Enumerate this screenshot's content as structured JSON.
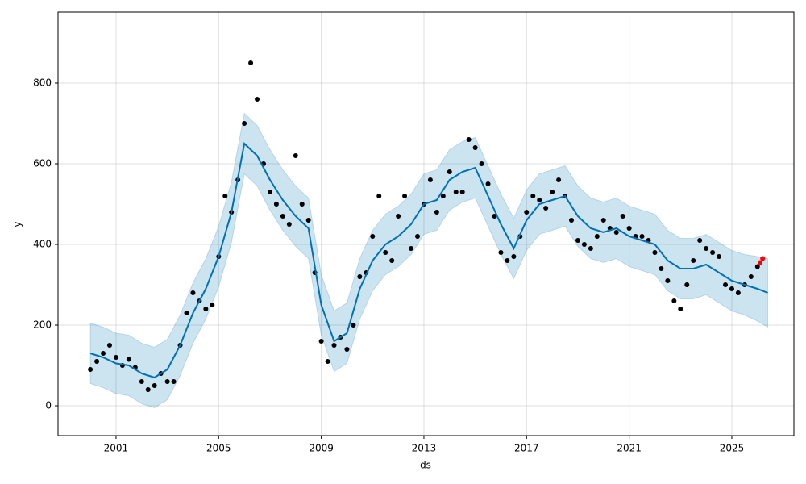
{
  "chart_data": {
    "type": "forecast",
    "x_label": "ds",
    "y_label": "y",
    "xlim": [
      1998.74,
      2027.42
    ],
    "ylim": [
      -74,
      976
    ],
    "xticks": [
      2001,
      2005,
      2009,
      2013,
      2017,
      2021,
      2025
    ],
    "yticks": [
      0,
      200,
      400,
      600,
      800
    ],
    "grid": true,
    "observed": {
      "color": "#000000",
      "x": [
        2000.0,
        2000.25,
        2000.5,
        2000.75,
        2001.0,
        2001.25,
        2001.5,
        2001.75,
        2002.0,
        2002.25,
        2002.5,
        2002.75,
        2003.0,
        2003.25,
        2003.5,
        2003.75,
        2004.0,
        2004.25,
        2004.5,
        2004.75,
        2005.0,
        2005.25,
        2005.5,
        2005.75,
        2006.0,
        2006.25,
        2006.5,
        2006.75,
        2007.0,
        2007.25,
        2007.5,
        2007.75,
        2008.0,
        2008.25,
        2008.5,
        2008.75,
        2009.0,
        2009.25,
        2009.5,
        2009.75,
        2010.0,
        2010.25,
        2010.5,
        2010.75,
        2011.0,
        2011.25,
        2011.5,
        2011.75,
        2012.0,
        2012.25,
        2012.5,
        2012.75,
        2013.0,
        2013.25,
        2013.5,
        2013.75,
        2014.0,
        2014.25,
        2014.5,
        2014.75,
        2015.0,
        2015.25,
        2015.5,
        2015.75,
        2016.0,
        2016.25,
        2016.5,
        2016.75,
        2017.0,
        2017.25,
        2017.5,
        2017.75,
        2018.0,
        2018.25,
        2018.5,
        2018.75,
        2019.0,
        2019.25,
        2019.5,
        2019.75,
        2020.0,
        2020.25,
        2020.5,
        2020.75,
        2021.0,
        2021.25,
        2021.5,
        2021.75,
        2022.0,
        2022.25,
        2022.5,
        2022.75,
        2023.0,
        2023.25,
        2023.5,
        2023.75,
        2024.0,
        2024.25,
        2024.5,
        2024.75,
        2025.0,
        2025.25,
        2025.5,
        2025.75,
        2026.0
      ],
      "values": [
        90,
        110,
        130,
        150,
        120,
        100,
        115,
        95,
        60,
        40,
        50,
        80,
        60,
        60,
        150,
        230,
        280,
        260,
        240,
        250,
        370,
        520,
        480,
        560,
        700,
        850,
        760,
        600,
        530,
        500,
        470,
        450,
        620,
        500,
        460,
        330,
        160,
        110,
        150,
        170,
        140,
        200,
        320,
        330,
        420,
        520,
        380,
        360,
        470,
        520,
        390,
        420,
        500,
        560,
        480,
        520,
        580,
        530,
        530,
        660,
        640,
        600,
        550,
        470,
        380,
        360,
        370,
        420,
        480,
        520,
        510,
        490,
        530,
        560,
        520,
        460,
        410,
        400,
        390,
        420,
        460,
        440,
        430,
        470,
        440,
        420,
        420,
        410,
        380,
        340,
        310,
        260,
        240,
        300,
        360,
        410,
        390,
        380,
        370,
        300,
        290,
        280,
        300,
        320,
        345
      ]
    },
    "recent": {
      "color": "#ff0000",
      "x": [
        2026.1,
        2026.2
      ],
      "values": [
        355,
        365
      ]
    },
    "forecast": {
      "color": "#0072b2",
      "band_color": "#0072b2",
      "x": [
        2000.0,
        2000.5,
        2001.0,
        2001.5,
        2002.0,
        2002.5,
        2003.0,
        2003.5,
        2004.0,
        2004.5,
        2005.0,
        2005.5,
        2006.0,
        2006.5,
        2007.0,
        2007.5,
        2008.0,
        2008.5,
        2009.0,
        2009.5,
        2010.0,
        2010.5,
        2011.0,
        2011.5,
        2012.0,
        2012.5,
        2013.0,
        2013.5,
        2014.0,
        2014.5,
        2015.0,
        2015.5,
        2016.0,
        2016.5,
        2017.0,
        2017.5,
        2018.0,
        2018.5,
        2019.0,
        2019.5,
        2020.0,
        2020.5,
        2021.0,
        2021.5,
        2022.0,
        2022.5,
        2023.0,
        2023.5,
        2024.0,
        2024.5,
        2025.0,
        2025.5,
        2026.0,
        2026.4
      ],
      "values": [
        130,
        120,
        105,
        100,
        80,
        70,
        90,
        150,
        230,
        290,
        370,
        480,
        650,
        620,
        560,
        510,
        470,
        440,
        250,
        160,
        180,
        290,
        360,
        400,
        420,
        450,
        500,
        510,
        560,
        580,
        590,
        520,
        450,
        390,
        460,
        500,
        510,
        520,
        470,
        440,
        430,
        440,
        420,
        410,
        400,
        360,
        340,
        340,
        350,
        330,
        310,
        300,
        290,
        280
      ],
      "upper": [
        205,
        195,
        180,
        175,
        155,
        145,
        165,
        225,
        305,
        365,
        445,
        555,
        725,
        695,
        635,
        585,
        545,
        515,
        325,
        235,
        255,
        365,
        435,
        475,
        495,
        525,
        575,
        585,
        635,
        655,
        665,
        595,
        525,
        465,
        535,
        575,
        585,
        595,
        545,
        515,
        505,
        515,
        495,
        485,
        475,
        435,
        415,
        415,
        425,
        405,
        385,
        375,
        370,
        365
      ],
      "lower": [
        55,
        45,
        30,
        25,
        5,
        -5,
        15,
        75,
        155,
        215,
        295,
        405,
        575,
        545,
        485,
        435,
        395,
        365,
        175,
        85,
        105,
        215,
        285,
        325,
        345,
        375,
        425,
        435,
        485,
        505,
        515,
        445,
        375,
        315,
        385,
        425,
        435,
        445,
        395,
        365,
        355,
        365,
        345,
        335,
        325,
        285,
        265,
        265,
        275,
        255,
        235,
        225,
        210,
        195
      ]
    }
  }
}
